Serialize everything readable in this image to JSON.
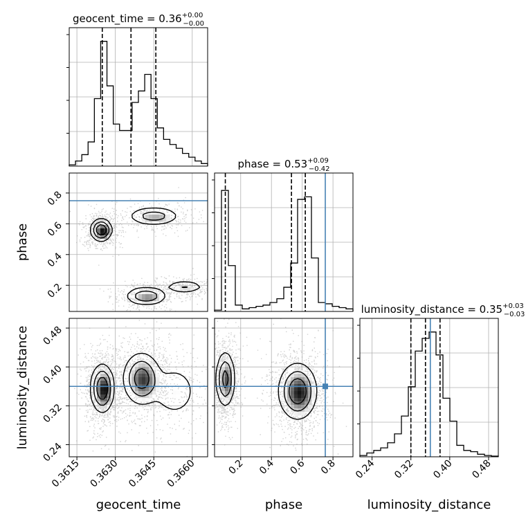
{
  "chart_data": {
    "type": "corner",
    "params": [
      "geocent_time",
      "phase",
      "luminosity_distance"
    ],
    "axis_labels": [
      "geocent_time",
      "phase",
      "luminosity_distance"
    ],
    "titles": [
      {
        "param": "geocent_time",
        "prefix": "geocent_time = ",
        "median": "0.36",
        "plus": "+0.00",
        "minus": "−0.00"
      },
      {
        "param": "phase",
        "prefix": "phase = ",
        "median": "0.53",
        "plus": "+0.09",
        "minus": "−0.42"
      },
      {
        "param": "luminosity_distance",
        "prefix": "luminosity_distance = ",
        "median": "0.35",
        "plus": "+0.03",
        "minus": "−0.03"
      }
    ],
    "ranges": {
      "geocent_time": [
        0.3612,
        0.3666
      ],
      "phase": [
        0.03,
        0.93
      ],
      "luminosity_distance": [
        0.215,
        0.5
      ]
    },
    "ticks": {
      "geocent_time": [
        0.3615,
        0.363,
        0.3645,
        0.366
      ],
      "phase": [
        0.2,
        0.4,
        0.6,
        0.8
      ],
      "luminosity_distance": [
        0.24,
        0.32,
        0.4,
        0.48
      ]
    },
    "tick_labels": {
      "geocent_time": [
        "0.3615",
        "0.3630",
        "0.3645",
        "0.3660"
      ],
      "phase": [
        "0.2",
        "0.4",
        "0.6",
        "0.8"
      ],
      "luminosity_distance": [
        "0.24",
        "0.32",
        "0.40",
        "0.48"
      ]
    },
    "truths": {
      "geocent_time": null,
      "phase": 0.75,
      "luminosity_distance": 0.36
    },
    "quantiles": {
      "geocent_time": [
        0.36249,
        0.36361,
        0.36458
      ],
      "phase": [
        0.1,
        0.53,
        0.62
      ],
      "luminosity_distance": [
        0.32,
        0.35,
        0.38
      ]
    },
    "hist_1d": {
      "geocent_time": [
        0.01,
        0.04,
        0.09,
        0.19,
        0.53,
        0.98,
        0.63,
        0.33,
        0.28,
        0.28,
        0.5,
        0.59,
        0.72,
        0.53,
        0.3,
        0.21,
        0.17,
        0.14,
        0.1,
        0.07,
        0.04,
        0.02
      ],
      "phase": [
        0.01,
        0.95,
        0.36,
        0.05,
        0.02,
        0.03,
        0.04,
        0.05,
        0.07,
        0.1,
        0.19,
        0.38,
        0.88,
        0.9,
        0.42,
        0.07,
        0.06,
        0.04,
        0.03,
        0.02
      ],
      "luminosity_distance": [
        0.01,
        0.03,
        0.05,
        0.07,
        0.11,
        0.18,
        0.32,
        0.55,
        0.83,
        0.93,
        0.98,
        0.8,
        0.46,
        0.28,
        0.09,
        0.05,
        0.04,
        0.02,
        0.01,
        0.005
      ]
    },
    "modes_2d": {
      "geocent_time_vs_phase": [
        {
          "x": 0.36245,
          "y": 0.56,
          "sx": 0.0002,
          "sy": 0.035,
          "w": 1.0
        },
        {
          "x": 0.3645,
          "y": 0.65,
          "sx": 0.0005,
          "sy": 0.03,
          "w": 0.5
        },
        {
          "x": 0.3642,
          "y": 0.13,
          "sx": 0.0004,
          "sy": 0.03,
          "w": 0.6
        },
        {
          "x": 0.3657,
          "y": 0.19,
          "sx": 0.0004,
          "sy": 0.02,
          "w": 0.35
        }
      ],
      "geocent_time_vs_luminosity_distance": [
        {
          "x": 0.36249,
          "y": 0.356,
          "sx": 0.00022,
          "sy": 0.024,
          "w": 1.0
        },
        {
          "x": 0.36402,
          "y": 0.376,
          "sx": 0.00035,
          "sy": 0.026,
          "w": 0.85
        },
        {
          "x": 0.3653,
          "y": 0.35,
          "sx": 0.0005,
          "sy": 0.03,
          "w": 0.25
        }
      ],
      "phase_vs_luminosity_distance": [
        {
          "x": 0.1,
          "y": 0.375,
          "sx": 0.03,
          "sy": 0.028,
          "w": 0.8
        },
        {
          "x": 0.57,
          "y": 0.35,
          "sx": 0.06,
          "sy": 0.028,
          "w": 1.0
        }
      ]
    },
    "grid": true
  }
}
